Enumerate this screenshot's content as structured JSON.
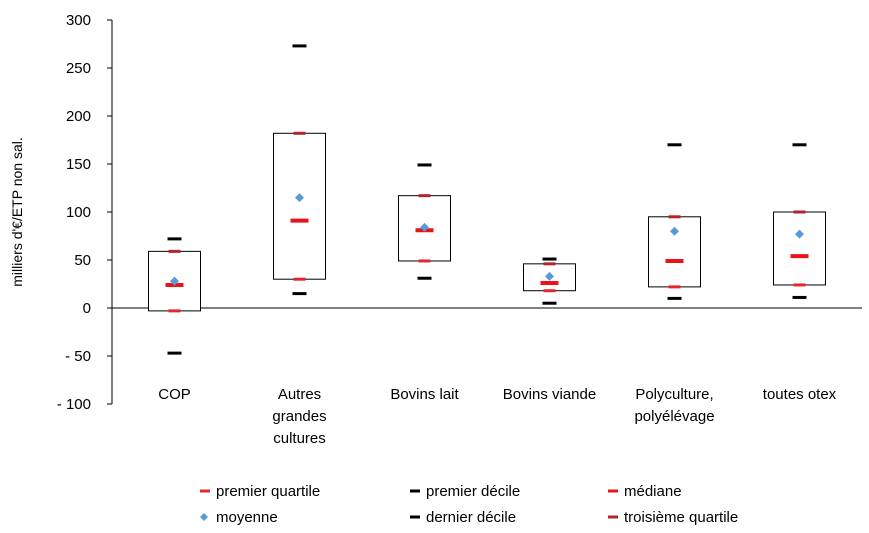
{
  "chart_data": {
    "type": "box",
    "ylabel": "milliers d'€/ETP non sal.",
    "ylim": [
      -100,
      300
    ],
    "y_ticks": [
      300,
      250,
      200,
      150,
      100,
      50,
      0,
      -50,
      -100
    ],
    "y_tick_labels": [
      "300",
      "250",
      "200",
      "150",
      "100",
      "50",
      "0",
      "- 50",
      "- 100"
    ],
    "categories": [
      [
        "COP"
      ],
      [
        "Autres",
        "grandes",
        "cultures"
      ],
      [
        "Bovins lait"
      ],
      [
        "Bovins viande"
      ],
      [
        "Polyculture,",
        "polyélévage"
      ],
      [
        "toutes otex"
      ]
    ],
    "series": [
      {
        "name": "premier décile",
        "values": [
          -47,
          15,
          31,
          5,
          10,
          11
        ]
      },
      {
        "name": "premier quartile",
        "values": [
          -3,
          30,
          49,
          18,
          22,
          24
        ]
      },
      {
        "name": "médiane",
        "values": [
          24,
          91,
          81,
          26,
          49,
          54
        ]
      },
      {
        "name": "moyenne",
        "values": [
          28,
          115,
          84,
          33,
          80,
          77
        ]
      },
      {
        "name": "troisième quartile",
        "values": [
          59,
          182,
          117,
          46,
          95,
          100
        ]
      },
      {
        "name": "dernier décile",
        "values": [
          72,
          273,
          149,
          51,
          170,
          170
        ]
      }
    ],
    "legend": {
      "placement": "bottom",
      "rows": [
        [
          "premier quartile",
          "premier décile",
          "médiane"
        ],
        [
          "moyenne",
          "dernier décile",
          "troisième quartile"
        ]
      ]
    },
    "colors": {
      "premier quartile": "#e3262f",
      "premier décile": "#000000",
      "médiane": "#e8131b",
      "moyenne": "#5b9bd5",
      "dernier décile": "#000000",
      "troisième quartile": "#b8232a"
    }
  }
}
